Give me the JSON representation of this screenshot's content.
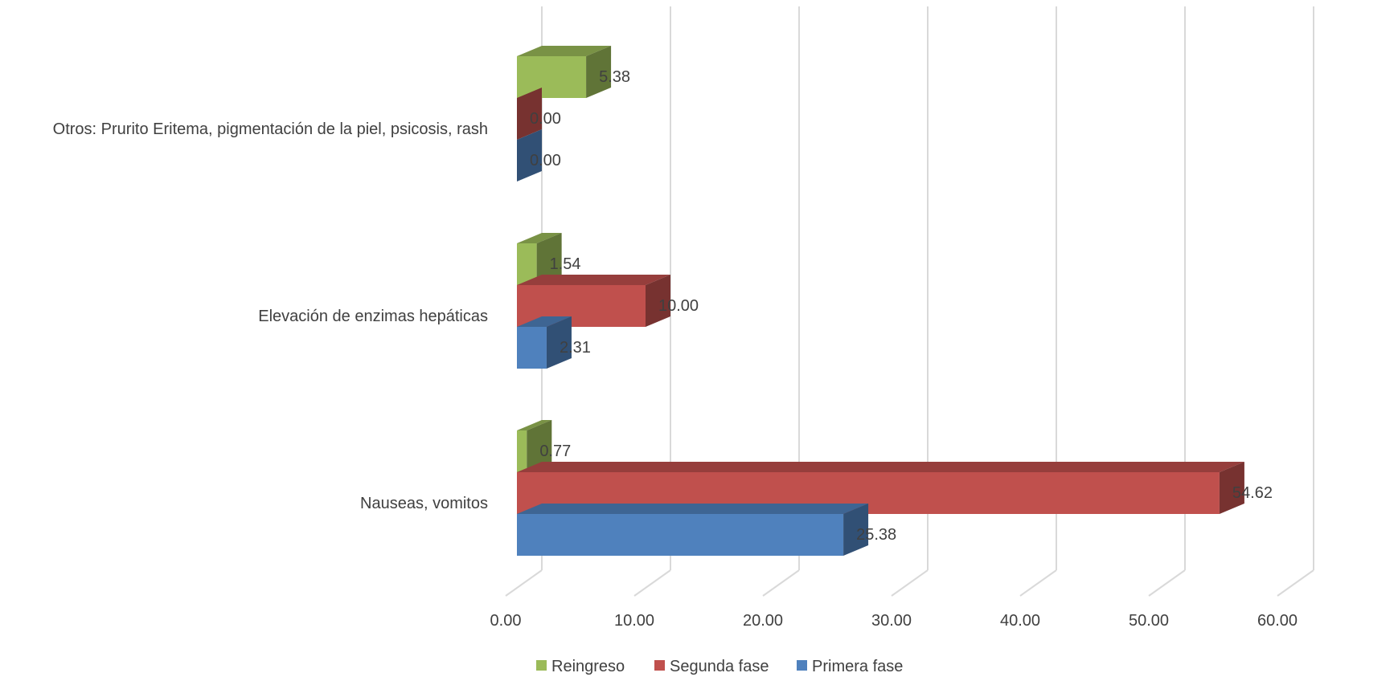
{
  "chart_data": {
    "type": "bar",
    "orientation": "horizontal",
    "style": "3d-clustered",
    "categories": [
      "Otros: Prurito Eritema, pigmentación de la piel, psicosis, rash",
      "Elevación de enzimas hepáticas",
      "Nauseas,  vomitos"
    ],
    "series": [
      {
        "name": "Reingreso",
        "color": "#9BBB59",
        "values": [
          5.38,
          1.54,
          0.77
        ],
        "labels": [
          "5.38",
          "1.54",
          "0.77"
        ]
      },
      {
        "name": "Segunda fase",
        "color": "#C0504D",
        "values": [
          0.0,
          10.0,
          54.62
        ],
        "labels": [
          "0.00",
          "10.00",
          "54.62"
        ]
      },
      {
        "name": "Primera fase",
        "color": "#4F81BD",
        "values": [
          0.0,
          2.31,
          25.38
        ],
        "labels": [
          "0.00",
          "2.31",
          "25.38"
        ]
      }
    ],
    "x_ticks": [
      "0.00",
      "10.00",
      "20.00",
      "30.00",
      "40.00",
      "50.00",
      "60.00"
    ],
    "xlim": [
      0,
      60
    ],
    "title": "",
    "xlabel": "",
    "ylabel": "",
    "grid": true,
    "legend_position": "bottom"
  }
}
